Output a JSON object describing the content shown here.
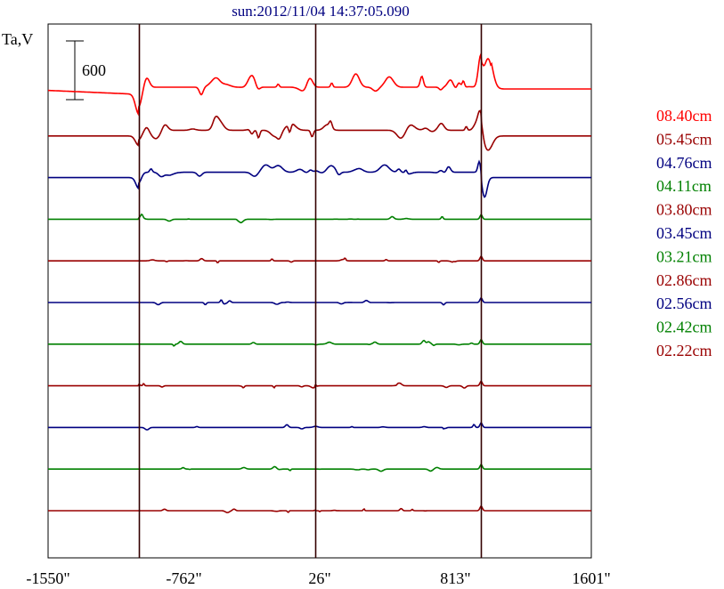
{
  "chart_data": {
    "type": "line",
    "title": "sun:2012/11/04 14:37:05.090",
    "ylabel": "Ta,V",
    "scale_bar_label": "600",
    "scale_bar_value": 600,
    "xticks": [
      {
        "label": "-1550\"",
        "value": -1550
      },
      {
        "label": "-762\"",
        "value": -762
      },
      {
        "label": "26\"",
        "value": 26
      },
      {
        "label": "813\"",
        "value": 813
      },
      {
        "label": "1601\"",
        "value": 1601
      }
    ],
    "xlim": [
      -1550,
      1601
    ],
    "vertical_lines": [
      -1025,
      0,
      962
    ],
    "grid": false,
    "legend_position": "right",
    "series": [
      {
        "name": "08.40cm",
        "color": "#ff0000",
        "amp": 1.0,
        "kind": "big",
        "seed": 3
      },
      {
        "name": "05.45cm",
        "color": "#990000",
        "amp": 0.8,
        "kind": "big",
        "seed": 7
      },
      {
        "name": "04.76cm",
        "color": "#000080",
        "amp": 0.6,
        "kind": "mid",
        "seed": 11
      },
      {
        "name": "04.11cm",
        "color": "#008000",
        "amp": 0.15,
        "kind": "small",
        "seed": 13
      },
      {
        "name": "03.80cm",
        "color": "#990000",
        "amp": 0.13,
        "kind": "small",
        "seed": 17
      },
      {
        "name": "03.45cm",
        "color": "#000080",
        "amp": 0.12,
        "kind": "small",
        "seed": 19
      },
      {
        "name": "03.21cm",
        "color": "#008000",
        "amp": 0.11,
        "kind": "small",
        "seed": 23
      },
      {
        "name": "02.86cm",
        "color": "#990000",
        "amp": 0.1,
        "kind": "small",
        "seed": 29
      },
      {
        "name": "02.56cm",
        "color": "#000080",
        "amp": 0.1,
        "kind": "small",
        "seed": 31
      },
      {
        "name": "02.42cm",
        "color": "#008000",
        "amp": 0.1,
        "kind": "small",
        "seed": 37
      },
      {
        "name": "02.22cm",
        "color": "#990000",
        "amp": 0.1,
        "kind": "small",
        "seed": 41
      }
    ]
  }
}
